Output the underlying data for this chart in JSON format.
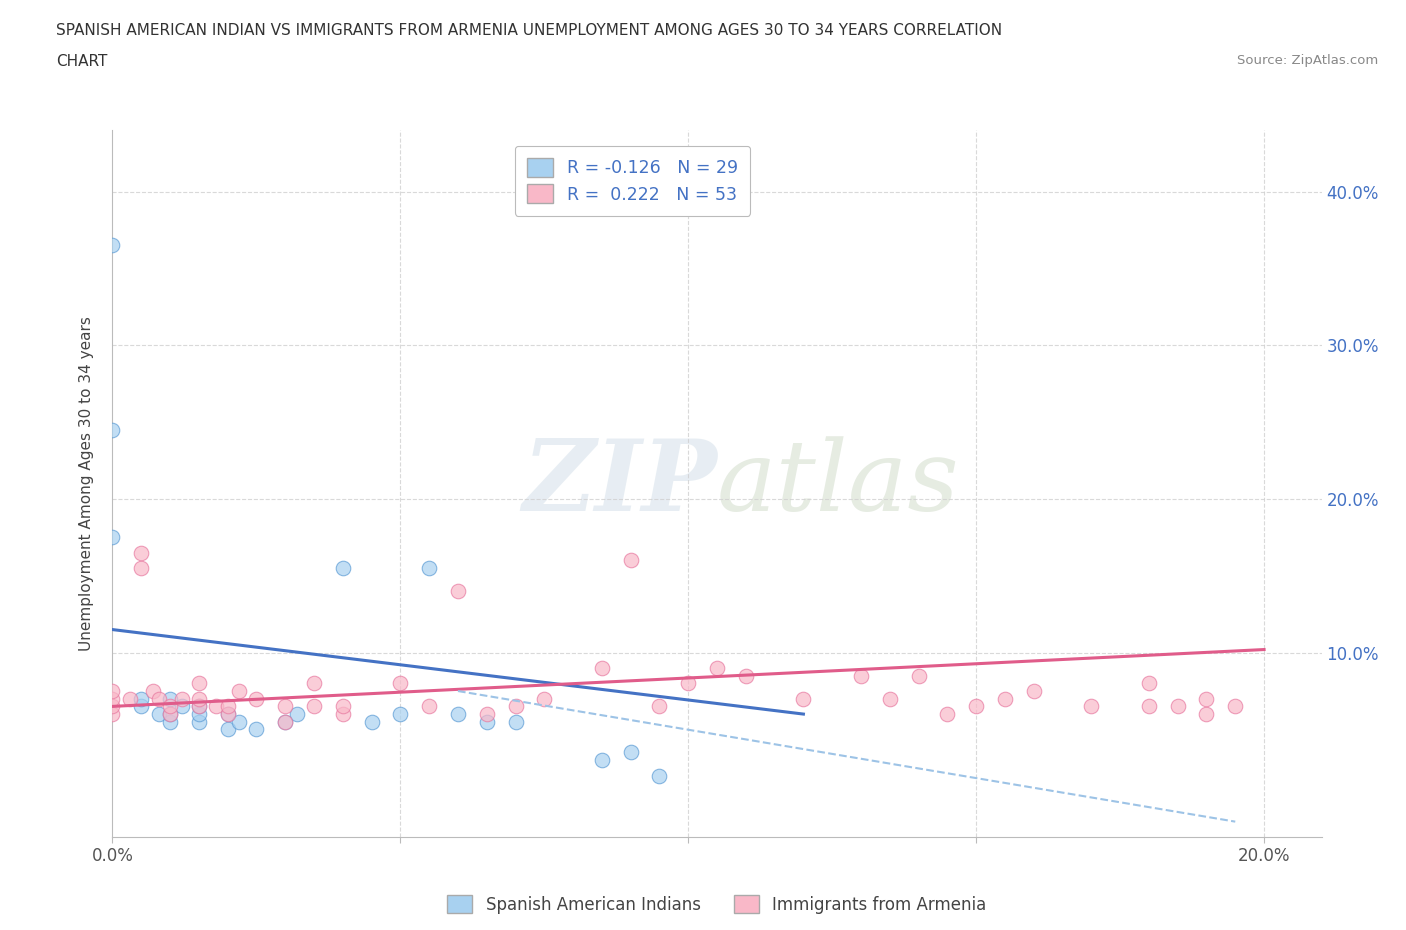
{
  "title_line1": "SPANISH AMERICAN INDIAN VS IMMIGRANTS FROM ARMENIA UNEMPLOYMENT AMONG AGES 30 TO 34 YEARS CORRELATION",
  "title_line2": "CHART",
  "source_text": "Source: ZipAtlas.com",
  "ylabel": "Unemployment Among Ages 30 to 34 years",
  "xlim": [
    0.0,
    0.21
  ],
  "ylim": [
    -0.02,
    0.44
  ],
  "xticks": [
    0.0,
    0.05,
    0.1,
    0.15,
    0.2
  ],
  "xticklabels": [
    "0.0%",
    "",
    "",
    "",
    "20.0%"
  ],
  "yticks": [
    0.0,
    0.1,
    0.2,
    0.3,
    0.4
  ],
  "yticklabels_right": [
    "",
    "10.0%",
    "20.0%",
    "30.0%",
    "40.0%"
  ],
  "watermark_zip": "ZIP",
  "watermark_atlas": "atlas",
  "legend_label1": "R = -0.126   N = 29",
  "legend_label2": "R =  0.222   N = 53",
  "color_blue": "#a8d1f0",
  "color_pink": "#f9b8c8",
  "color_blue_edge": "#5b9bd5",
  "color_pink_edge": "#e879a0",
  "color_blue_line": "#4472c4",
  "color_pink_line": "#e05c8a",
  "color_dashed_line": "#9dc3e6",
  "background_color": "#ffffff",
  "grid_color": "#d0d0d0",
  "blue_scatter_x": [
    0.0,
    0.0,
    0.0,
    0.005,
    0.005,
    0.008,
    0.01,
    0.01,
    0.01,
    0.012,
    0.015,
    0.015,
    0.015,
    0.02,
    0.02,
    0.022,
    0.025,
    0.03,
    0.032,
    0.04,
    0.045,
    0.05,
    0.055,
    0.06,
    0.065,
    0.07,
    0.085,
    0.09,
    0.095
  ],
  "blue_scatter_y": [
    0.365,
    0.245,
    0.175,
    0.065,
    0.07,
    0.06,
    0.055,
    0.06,
    0.07,
    0.065,
    0.055,
    0.06,
    0.065,
    0.05,
    0.06,
    0.055,
    0.05,
    0.055,
    0.06,
    0.155,
    0.055,
    0.06,
    0.155,
    0.06,
    0.055,
    0.055,
    0.03,
    0.035,
    0.02
  ],
  "pink_scatter_x": [
    0.0,
    0.0,
    0.0,
    0.0,
    0.003,
    0.005,
    0.005,
    0.007,
    0.008,
    0.01,
    0.01,
    0.012,
    0.015,
    0.015,
    0.015,
    0.018,
    0.02,
    0.02,
    0.022,
    0.025,
    0.03,
    0.03,
    0.035,
    0.035,
    0.04,
    0.04,
    0.05,
    0.055,
    0.06,
    0.065,
    0.07,
    0.075,
    0.085,
    0.09,
    0.095,
    0.1,
    0.105,
    0.11,
    0.12,
    0.13,
    0.135,
    0.14,
    0.145,
    0.15,
    0.155,
    0.16,
    0.17,
    0.18,
    0.185,
    0.19,
    0.195,
    0.18,
    0.19
  ],
  "pink_scatter_y": [
    0.06,
    0.065,
    0.07,
    0.075,
    0.07,
    0.155,
    0.165,
    0.075,
    0.07,
    0.06,
    0.065,
    0.07,
    0.065,
    0.07,
    0.08,
    0.065,
    0.06,
    0.065,
    0.075,
    0.07,
    0.055,
    0.065,
    0.08,
    0.065,
    0.06,
    0.065,
    0.08,
    0.065,
    0.14,
    0.06,
    0.065,
    0.07,
    0.09,
    0.16,
    0.065,
    0.08,
    0.09,
    0.085,
    0.07,
    0.085,
    0.07,
    0.085,
    0.06,
    0.065,
    0.07,
    0.075,
    0.065,
    0.08,
    0.065,
    0.06,
    0.065,
    0.065,
    0.07
  ],
  "blue_line_x": [
    0.0,
    0.12
  ],
  "blue_line_y": [
    0.115,
    0.06
  ],
  "dashed_line_x": [
    0.06,
    0.195
  ],
  "dashed_line_y": [
    0.075,
    -0.01
  ],
  "pink_line_x": [
    0.0,
    0.2
  ],
  "pink_line_y": [
    0.065,
    0.102
  ],
  "bottom_legend_blue": "Spanish American Indians",
  "bottom_legend_pink": "Immigrants from Armenia"
}
